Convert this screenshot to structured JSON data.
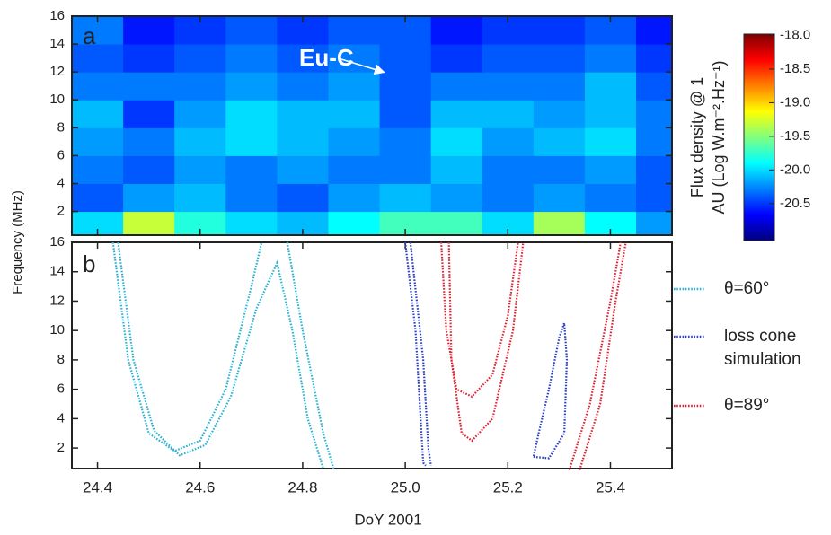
{
  "chart_data": [
    {
      "type": "heatmap",
      "panel_label": "a",
      "annotation": "Eu-C",
      "xlim": [
        24.35,
        25.52
      ],
      "ylim": [
        0.3,
        16
      ],
      "xticks": [
        24.4,
        24.6,
        24.8,
        25,
        25.2,
        25.4
      ],
      "yticks": [
        2,
        4,
        6,
        8,
        10,
        12,
        14,
        16
      ],
      "xbins": [
        24.35,
        24.45,
        24.55,
        24.65,
        24.75,
        24.85,
        24.95,
        25.05,
        25.15,
        25.25,
        25.35,
        25.45,
        25.55
      ],
      "ybins": [
        0,
        2,
        4,
        6,
        8,
        10,
        12,
        14,
        16
      ],
      "z": [
        [
          -20.0,
          -19.3,
          -19.8,
          -20.0,
          -20.1,
          -19.9,
          -19.7,
          -19.7,
          -20.0,
          -19.4,
          -19.9,
          -20.2
        ],
        [
          -20.4,
          -20.2,
          -20.1,
          -20.3,
          -20.4,
          -20.2,
          -20.1,
          -20.2,
          -20.3,
          -20.2,
          -20.3,
          -20.4
        ],
        [
          -20.3,
          -20.4,
          -20.2,
          -20.3,
          -20.2,
          -20.3,
          -20.3,
          -20.1,
          -20.3,
          -20.3,
          -20.2,
          -20.4
        ],
        [
          -20.2,
          -20.3,
          -20.1,
          -20.0,
          -20.1,
          -20.2,
          -20.3,
          -20.0,
          -20.2,
          -20.1,
          -20.0,
          -20.3
        ],
        [
          -20.1,
          -20.5,
          -20.2,
          -20.0,
          -20.1,
          -20.1,
          -20.4,
          -20.1,
          -20.1,
          -20.2,
          -20.1,
          -20.3
        ],
        [
          -20.3,
          -20.3,
          -20.3,
          -20.2,
          -20.3,
          -20.2,
          -20.4,
          -20.3,
          -20.3,
          -20.3,
          -20.1,
          -20.4
        ],
        [
          -20.4,
          -20.5,
          -20.4,
          -20.3,
          -20.4,
          -20.3,
          -20.4,
          -20.5,
          -20.4,
          -20.4,
          -20.3,
          -20.5
        ],
        [
          -20.3,
          -20.6,
          -20.5,
          -20.4,
          -20.5,
          -20.4,
          -20.4,
          -20.6,
          -20.5,
          -20.5,
          -20.4,
          -20.6
        ]
      ],
      "colorbar": {
        "label": [
          "Flux density @ 1",
          "AU (Log W.m⁻².Hz⁻¹)"
        ],
        "clim": [
          -21.05,
          -17.98
        ],
        "ticks": [
          {
            "value": -18,
            "label": "-18.0"
          },
          -18.5,
          {
            "value": -19,
            "label": "-19.0"
          },
          -19.5,
          {
            "value": -20,
            "label": "-20.0"
          },
          -20.5
        ]
      }
    },
    {
      "type": "line",
      "panel_label": "b",
      "xlabel": "DoY 2001",
      "ylabel": "Frequency (MHz)",
      "xlim": [
        24.35,
        25.52
      ],
      "ylim": [
        0.6,
        16
      ],
      "xticks": [
        24.4,
        24.6,
        24.8,
        {
          "value": 25,
          "label": "25.0"
        },
        25.2,
        25.4
      ],
      "yticks": [
        2,
        4,
        6,
        8,
        10,
        12,
        14,
        16
      ],
      "series": [
        {
          "name": "θ=60°",
          "color": "#2ab4d4",
          "x": [
            24.43,
            24.46,
            24.5,
            24.55,
            24.6,
            24.65,
            24.7,
            24.72,
            null,
            24.44,
            24.47,
            24.51,
            24.56,
            24.61,
            24.66,
            24.71,
            24.75,
            24.78,
            24.81,
            24.84,
            null,
            24.77,
            24.8,
            24.84,
            24.86
          ],
          "values": [
            16,
            8,
            3,
            1.8,
            2.5,
            6,
            13,
            16,
            null,
            16,
            8,
            3.2,
            1.5,
            2.2,
            5.5,
            11.5,
            14.6,
            10,
            4,
            0.6,
            null,
            16,
            10,
            3,
            0.6
          ]
        },
        {
          "name": "loss cone simulation",
          "color": "#2a40c8",
          "x": [
            25.0,
            25.02,
            25.03,
            25.035,
            25.04,
            null,
            25.01,
            25.035,
            25.045,
            25.05,
            null,
            25.25,
            25.28,
            25.31,
            25.315,
            25.31,
            25.3,
            25.28,
            25.26,
            25.25
          ],
          "values": [
            16,
            10,
            4,
            1,
            0.8,
            null,
            16,
            8,
            2,
            0.8,
            null,
            1.4,
            1.3,
            3,
            8,
            10.5,
            9.5,
            6,
            3,
            1.4
          ]
        },
        {
          "name": "θ=89°",
          "color": "#e02232",
          "x": [
            25.07,
            25.08,
            25.1,
            25.13,
            25.17,
            25.2,
            25.22,
            null,
            25.085,
            25.09,
            25.11,
            25.13,
            25.17,
            25.21,
            25.23,
            null,
            25.32,
            25.36,
            25.4,
            25.42,
            null,
            25.34,
            25.38,
            25.41,
            25.43
          ],
          "values": [
            16,
            10,
            6,
            5.5,
            7,
            11,
            16,
            null,
            16,
            8,
            3,
            2.5,
            4,
            10,
            16,
            null,
            0.5,
            5,
            12,
            16,
            null,
            0.5,
            5,
            12,
            16
          ]
        }
      ]
    }
  ]
}
